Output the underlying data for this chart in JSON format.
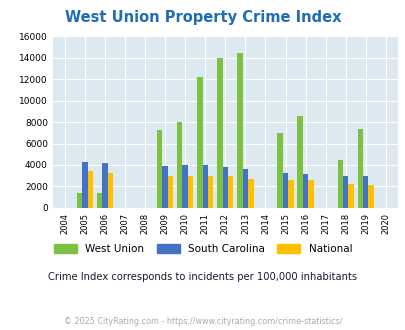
{
  "title": "West Union Property Crime Index",
  "years": [
    2004,
    2005,
    2006,
    2007,
    2008,
    2009,
    2010,
    2011,
    2012,
    2013,
    2014,
    2015,
    2016,
    2017,
    2018,
    2019,
    2020
  ],
  "west_union": [
    0,
    1400,
    1400,
    0,
    0,
    7300,
    8000,
    12200,
    14000,
    14400,
    0,
    7000,
    8600,
    0,
    4500,
    7400,
    0
  ],
  "south_carolina": [
    0,
    4300,
    4200,
    0,
    0,
    3950,
    4000,
    4000,
    3850,
    3600,
    0,
    3250,
    3200,
    0,
    3000,
    3000,
    0
  ],
  "national": [
    0,
    3450,
    3300,
    0,
    0,
    3000,
    3000,
    3000,
    2950,
    2700,
    0,
    2600,
    2600,
    0,
    2200,
    2150,
    0
  ],
  "bar_width": 0.27,
  "colors": {
    "west_union": "#7dc142",
    "south_carolina": "#4472c4",
    "national": "#ffc000"
  },
  "ylim": [
    0,
    16000
  ],
  "yticks": [
    0,
    2000,
    4000,
    6000,
    8000,
    10000,
    12000,
    14000,
    16000
  ],
  "bg_color": "#dce9f0",
  "grid_color": "#ffffff",
  "title_color": "#1f6eb5",
  "subtitle": "Crime Index corresponds to incidents per 100,000 inhabitants",
  "footer": "© 2025 CityRating.com - https://www.cityrating.com/crime-statistics/",
  "footer_color": "#aaaaaa",
  "subtitle_color": "#1a1a2e"
}
